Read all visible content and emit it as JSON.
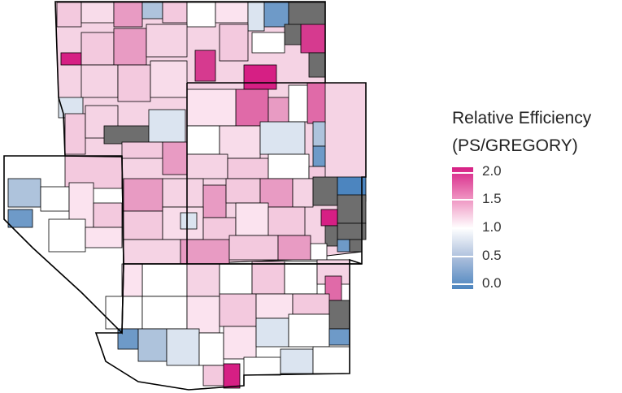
{
  "legend": {
    "title_line1": "Relative Efficiency",
    "title_line2": "(PS/GREGORY)",
    "ticks": [
      "2.0",
      "1.5",
      "1.0",
      "0.5",
      "0.0"
    ],
    "scale_min": 0.0,
    "scale_max": 2.0,
    "colors": {
      "low": "#4c85bf",
      "mid": "#ffffff",
      "high": "#d61f84",
      "missing": "#6e6e6e"
    }
  },
  "map": {
    "description_colors": [
      "#f3c9de",
      "#e89bc3",
      "#fbe3ef",
      "#ffffff",
      "#dbe4f0",
      "#aec3dc",
      "#6e6e6e",
      "#d61f84"
    ]
  }
}
